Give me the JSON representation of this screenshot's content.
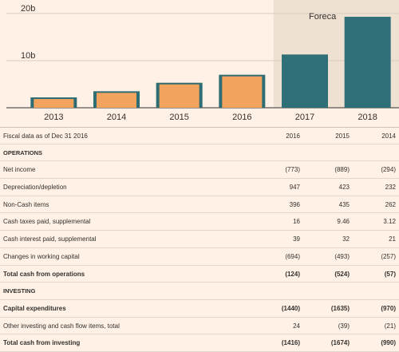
{
  "chart_data": {
    "type": "bar",
    "categories": [
      "2013",
      "2014",
      "2015",
      "2016",
      "2017",
      "2018"
    ],
    "series": [
      {
        "values": [
          2.2,
          3.5,
          5.3,
          7.0,
          11.3,
          19.3
        ],
        "forecast": [
          false,
          false,
          false,
          false,
          true,
          true
        ]
      }
    ],
    "yticks": [
      "20b",
      "10b"
    ],
    "ylim": [
      0,
      21
    ],
    "forecast_label": "Foreca",
    "colors": {
      "actual_fill": "#f2a35d",
      "actual_edge": "#2e6d74",
      "forecast_fill": "#2f6f77",
      "forecast_band": "#efe1d2",
      "grid": "#d9cdbf"
    }
  },
  "table": {
    "header": {
      "label": "Fiscal data as of Dec 31 2016",
      "years": [
        "2016",
        "2015",
        "2014"
      ]
    },
    "rows": [
      {
        "kind": "section",
        "label": "OPERATIONS"
      },
      {
        "kind": "data",
        "label": "Net income",
        "values": [
          "(773)",
          "(889)",
          "(294)"
        ]
      },
      {
        "kind": "data",
        "label": "Depreciation/depletion",
        "values": [
          "947",
          "423",
          "232"
        ]
      },
      {
        "kind": "data",
        "label": "Non-Cash items",
        "values": [
          "396",
          "435",
          "262"
        ]
      },
      {
        "kind": "data",
        "label": "Cash taxes paid, supplemental",
        "values": [
          "16",
          "9.46",
          "3.12"
        ]
      },
      {
        "kind": "data",
        "label": "Cash interest paid, supplemental",
        "values": [
          "39",
          "32",
          "21"
        ]
      },
      {
        "kind": "data",
        "label": "Changes in working capital",
        "values": [
          "(694)",
          "(493)",
          "(257)"
        ]
      },
      {
        "kind": "total",
        "label": "Total cash from operations",
        "values": [
          "(124)",
          "(524)",
          "(57)"
        ]
      },
      {
        "kind": "section",
        "label": "INVESTING"
      },
      {
        "kind": "bold",
        "label": "Capital expenditures",
        "values": [
          "(1440)",
          "(1635)",
          "(970)"
        ]
      },
      {
        "kind": "data",
        "label": "Other investing and cash flow items, total",
        "values": [
          "24",
          "(39)",
          "(21)"
        ]
      },
      {
        "kind": "total",
        "label": "Total cash from investing",
        "values": [
          "(1416)",
          "(1674)",
          "(990)"
        ]
      }
    ]
  }
}
